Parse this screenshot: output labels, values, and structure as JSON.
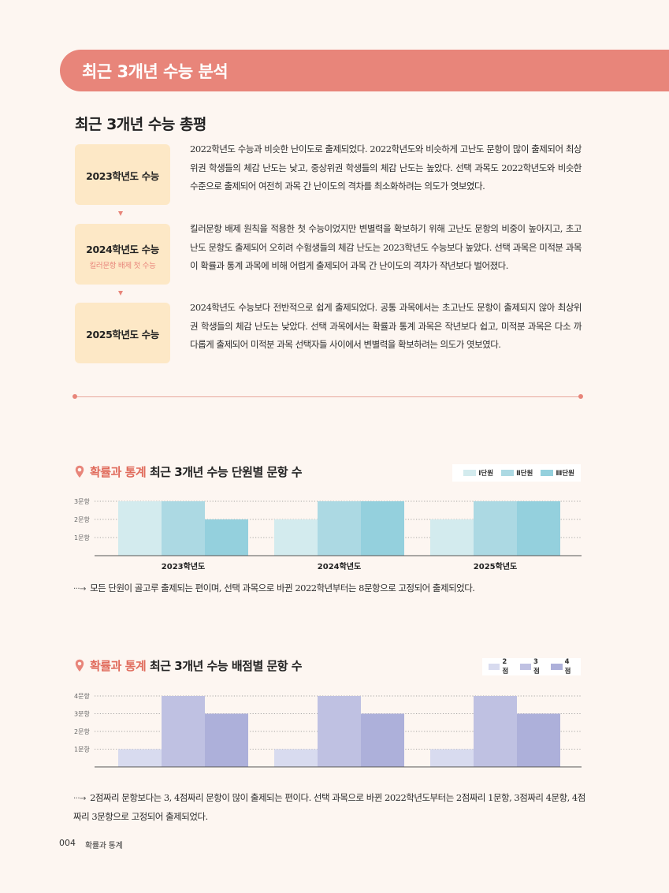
{
  "banner": {
    "title": "최근 3개년 수능 분석"
  },
  "review": {
    "title": "최근 3개년 수능 총평",
    "items": [
      {
        "label": "2023학년도 수능",
        "sub": "",
        "text": "2022학년도 수능과 비슷한 난이도로 출제되었다. 2022학년도와 비슷하게 고난도 문항이 많이 출제되어 최상위권 학생들의 체감 난도는 낮고, 중상위권 학생들의 체감 난도는 높았다. 선택 과목도 2022학년도와 비슷한 수준으로 출제되어 여전히 과목 간 난이도의 격차를 최소화하려는 의도가 엿보였다."
      },
      {
        "label": "2024학년도 수능",
        "sub": "킬러문항 배제 첫 수능",
        "text": "킬러문항 배제 원칙을 적용한 첫 수능이었지만 변별력을 확보하기 위해 고난도 문항의 비중이 높아지고, 초고난도 문항도 출제되어 오히려 수험생들의 체감 난도는 2023학년도 수능보다 높았다. 선택 과목은 미적분 과목이 확률과 통계 과목에 비해 어렵게 출제되어 과목 간 난이도의 격차가 작년보다 벌어졌다."
      },
      {
        "label": "2025학년도 수능",
        "sub": "",
        "text": "2024학년도 수능보다 전반적으로 쉽게 출제되었다. 공통 과목에서는 초고난도 문항이 출제되지 않아 최상위권 학생들의 체감 난도는 낮았다. 선택 과목에서는 확률과 통계 과목은 작년보다 쉽고, 미적분 과목은 다소 까다롭게 출제되어 미적분 과목 선택자들 사이에서 변별력을 확보하려는 의도가 엿보였다."
      }
    ]
  },
  "chart1": {
    "title_accent": "확률과 통계",
    "title_rest": " 최근 3개년 수능 단원별 문항 수",
    "note": "모든 단원이 골고루 출제되는 편이며, 선택 과목으로 바뀐 2022학년부터는 8문항으로 고정되어 출제되었다.",
    "arrow": "···→"
  },
  "chart2": {
    "title_accent": "확률과 통계",
    "title_rest": " 최근 3개년 수능 배점별 문항 수",
    "note": "2점짜리 문항보다는 3, 4점짜리 문항이 많이 출제되는 편이다. 선택 과목으로 바뀐 2022학년도부터는 2점짜리 1문항, 3점짜리 4문항, 4점짜리 3문항으로 고정되어 출제되었다.",
    "arrow": "···→"
  },
  "chart_data": [
    {
      "type": "bar",
      "categories": [
        "2023학년도",
        "2024학년도",
        "2025학년도"
      ],
      "series": [
        {
          "name": "Ⅰ단원",
          "values": [
            3,
            2,
            2
          ],
          "color": "#d3ebee"
        },
        {
          "name": "Ⅱ단원",
          "values": [
            3,
            3,
            3
          ],
          "color": "#acd9e3"
        },
        {
          "name": "Ⅲ단원",
          "values": [
            2,
            3,
            3
          ],
          "color": "#94d0dd"
        }
      ],
      "y_ticks": [
        "1문항",
        "2문항",
        "3문항"
      ],
      "ylim": [
        0,
        3
      ],
      "grid": true,
      "legend": "top-right"
    },
    {
      "type": "bar",
      "categories": [
        "2023학년도",
        "2024학년도",
        "2025학년도"
      ],
      "series": [
        {
          "name": "2점",
          "values": [
            1,
            1,
            1
          ],
          "color": "#d8dbef"
        },
        {
          "name": "3점",
          "values": [
            4,
            4,
            4
          ],
          "color": "#bfc1e2"
        },
        {
          "name": "4점",
          "values": [
            3,
            3,
            3
          ],
          "color": "#adb0da"
        }
      ],
      "y_ticks": [
        "1문항",
        "2문항",
        "3문항",
        "4문항"
      ],
      "ylim": [
        0,
        4
      ],
      "grid": true,
      "legend": "top-right"
    }
  ],
  "footer": {
    "page": "004",
    "book": "확률과 통계"
  },
  "colors": {
    "accent": "#e8857a",
    "box": "#fde8c6",
    "background": "#fdf6f1"
  }
}
